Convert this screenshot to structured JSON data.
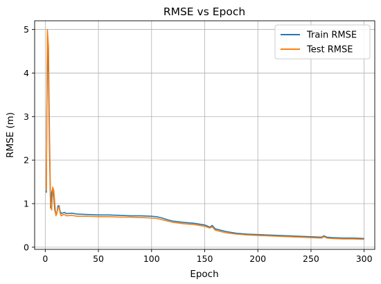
{
  "chart_data": {
    "type": "line",
    "title": "RMSE vs Epoch",
    "xlabel": "Epoch",
    "ylabel": "RMSE (m)",
    "xlim": [
      -10,
      310
    ],
    "ylim": [
      -0.05,
      5.2
    ],
    "xticks": [
      0,
      50,
      100,
      150,
      200,
      250,
      300
    ],
    "yticks": [
      0,
      1,
      2,
      3,
      4,
      5
    ],
    "grid": true,
    "legend_position": "top-right",
    "series": [
      {
        "name": "Train RMSE",
        "color": "#1f77b4",
        "points": [
          [
            1,
            1.25
          ],
          [
            2,
            4.85
          ],
          [
            3,
            4.0
          ],
          [
            4,
            2.2
          ],
          [
            5,
            0.9
          ],
          [
            6,
            1.25
          ],
          [
            7,
            1.35
          ],
          [
            8,
            1.15
          ],
          [
            9,
            0.85
          ],
          [
            10,
            0.75
          ],
          [
            11,
            0.8
          ],
          [
            12,
            0.95
          ],
          [
            13,
            0.95
          ],
          [
            14,
            0.82
          ],
          [
            15,
            0.78
          ],
          [
            16,
            0.78
          ],
          [
            18,
            0.8
          ],
          [
            20,
            0.77
          ],
          [
            25,
            0.78
          ],
          [
            30,
            0.76
          ],
          [
            40,
            0.75
          ],
          [
            50,
            0.74
          ],
          [
            60,
            0.74
          ],
          [
            70,
            0.73
          ],
          [
            80,
            0.72
          ],
          [
            90,
            0.72
          ],
          [
            100,
            0.71
          ],
          [
            105,
            0.7
          ],
          [
            110,
            0.67
          ],
          [
            115,
            0.63
          ],
          [
            120,
            0.6
          ],
          [
            130,
            0.57
          ],
          [
            140,
            0.55
          ],
          [
            150,
            0.51
          ],
          [
            155,
            0.46
          ],
          [
            157,
            0.5
          ],
          [
            160,
            0.42
          ],
          [
            170,
            0.36
          ],
          [
            180,
            0.32
          ],
          [
            190,
            0.3
          ],
          [
            200,
            0.29
          ],
          [
            210,
            0.28
          ],
          [
            220,
            0.27
          ],
          [
            230,
            0.26
          ],
          [
            240,
            0.25
          ],
          [
            250,
            0.24
          ],
          [
            260,
            0.23
          ],
          [
            262,
            0.26
          ],
          [
            265,
            0.23
          ],
          [
            270,
            0.22
          ],
          [
            280,
            0.21
          ],
          [
            290,
            0.21
          ],
          [
            300,
            0.2
          ]
        ]
      },
      {
        "name": "Test RMSE",
        "color": "#ff7f0e",
        "points": [
          [
            1,
            1.3
          ],
          [
            2,
            5.0
          ],
          [
            3,
            4.6
          ],
          [
            4,
            2.6
          ],
          [
            5,
            1.0
          ],
          [
            6,
            0.85
          ],
          [
            7,
            1.38
          ],
          [
            8,
            1.3
          ],
          [
            9,
            1.0
          ],
          [
            10,
            0.72
          ],
          [
            11,
            0.78
          ],
          [
            12,
            0.9
          ],
          [
            13,
            0.92
          ],
          [
            14,
            0.78
          ],
          [
            15,
            0.72
          ],
          [
            16,
            0.74
          ],
          [
            18,
            0.75
          ],
          [
            20,
            0.72
          ],
          [
            25,
            0.73
          ],
          [
            30,
            0.71
          ],
          [
            40,
            0.71
          ],
          [
            50,
            0.7
          ],
          [
            60,
            0.7
          ],
          [
            70,
            0.69
          ],
          [
            80,
            0.69
          ],
          [
            90,
            0.68
          ],
          [
            100,
            0.67
          ],
          [
            105,
            0.66
          ],
          [
            110,
            0.63
          ],
          [
            115,
            0.6
          ],
          [
            120,
            0.57
          ],
          [
            130,
            0.54
          ],
          [
            140,
            0.52
          ],
          [
            150,
            0.48
          ],
          [
            155,
            0.44
          ],
          [
            157,
            0.47
          ],
          [
            160,
            0.39
          ],
          [
            170,
            0.33
          ],
          [
            180,
            0.3
          ],
          [
            190,
            0.28
          ],
          [
            200,
            0.27
          ],
          [
            210,
            0.26
          ],
          [
            220,
            0.25
          ],
          [
            230,
            0.24
          ],
          [
            240,
            0.23
          ],
          [
            250,
            0.22
          ],
          [
            260,
            0.21
          ],
          [
            262,
            0.24
          ],
          [
            265,
            0.21
          ],
          [
            270,
            0.2
          ],
          [
            280,
            0.19
          ],
          [
            290,
            0.19
          ],
          [
            300,
            0.18
          ]
        ]
      }
    ]
  }
}
